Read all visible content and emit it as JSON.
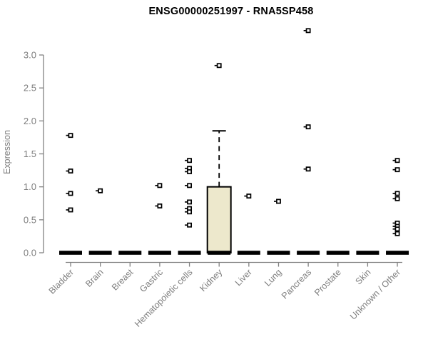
{
  "chart_data": {
    "type": "boxplot",
    "title": "ENSG00000251997 - RNA5SP458",
    "ylabel": "Expression",
    "xlabel": "",
    "ylim": [
      0,
      3.4
    ],
    "yticks": [
      "0.0",
      "0.5",
      "1.0",
      "1.5",
      "2.0",
      "2.5",
      "3.0"
    ],
    "grid": false,
    "legend": "none",
    "marker_style": "open-square-with-left-tick",
    "categories": [
      "Bladder",
      "Brain",
      "Breast",
      "Gastric",
      "Hematopoietic cells",
      "Kidney",
      "Liver",
      "Lung",
      "Pancreas",
      "Prostate",
      "Skin",
      "Unknown / Other"
    ],
    "boxes": [
      {
        "category": "Bladder",
        "median": 0,
        "q1": 0,
        "q3": 0,
        "whisker_low": 0,
        "whisker_high": 0,
        "points": [
          1.78,
          1.24,
          0.9,
          0.65
        ]
      },
      {
        "category": "Brain",
        "median": 0,
        "q1": 0,
        "q3": 0,
        "whisker_low": 0,
        "whisker_high": 0,
        "points": [
          0.94
        ]
      },
      {
        "category": "Breast",
        "median": 0,
        "q1": 0,
        "q3": 0,
        "whisker_low": 0,
        "whisker_high": 0,
        "points": []
      },
      {
        "category": "Gastric",
        "median": 0,
        "q1": 0,
        "q3": 0,
        "whisker_low": 0,
        "whisker_high": 0,
        "points": [
          1.02,
          0.71
        ]
      },
      {
        "category": "Hematopoietic cells",
        "median": 0,
        "q1": 0,
        "q3": 0,
        "whisker_low": 0,
        "whisker_high": 0,
        "points": [
          1.4,
          1.28,
          1.23,
          1.02,
          0.77,
          0.67,
          0.62,
          0.42
        ]
      },
      {
        "category": "Kidney",
        "median": 0,
        "q1": 0,
        "q3": 1.0,
        "whisker_low": 0,
        "whisker_high": 1.85,
        "points": [
          2.84
        ]
      },
      {
        "category": "Liver",
        "median": 0,
        "q1": 0,
        "q3": 0,
        "whisker_low": 0,
        "whisker_high": 0,
        "points": [
          0.86
        ]
      },
      {
        "category": "Lung",
        "median": 0,
        "q1": 0,
        "q3": 0,
        "whisker_low": 0,
        "whisker_high": 0,
        "points": [
          0.78
        ]
      },
      {
        "category": "Pancreas",
        "median": 0,
        "q1": 0,
        "q3": 0,
        "whisker_low": 0,
        "whisker_high": 0,
        "points": [
          3.37,
          1.91,
          1.27
        ]
      },
      {
        "category": "Prostate",
        "median": 0,
        "q1": 0,
        "q3": 0,
        "whisker_low": 0,
        "whisker_high": 0,
        "points": []
      },
      {
        "category": "Skin",
        "median": 0,
        "q1": 0,
        "q3": 0,
        "whisker_low": 0,
        "whisker_high": 0,
        "points": []
      },
      {
        "category": "Unknown / Other",
        "median": 0,
        "q1": 0,
        "q3": 0,
        "whisker_low": 0,
        "whisker_high": 0,
        "points": [
          1.4,
          1.26,
          0.9,
          0.82,
          0.45,
          0.4,
          0.36,
          0.29
        ]
      }
    ],
    "colors": {
      "box_fill": "#ede8cc",
      "box_border": "#000000",
      "median_bar": "#000000",
      "marker": "#000000",
      "axis_line": "#828282",
      "tick_label": "#7e7e7e",
      "title": "#000000"
    }
  }
}
